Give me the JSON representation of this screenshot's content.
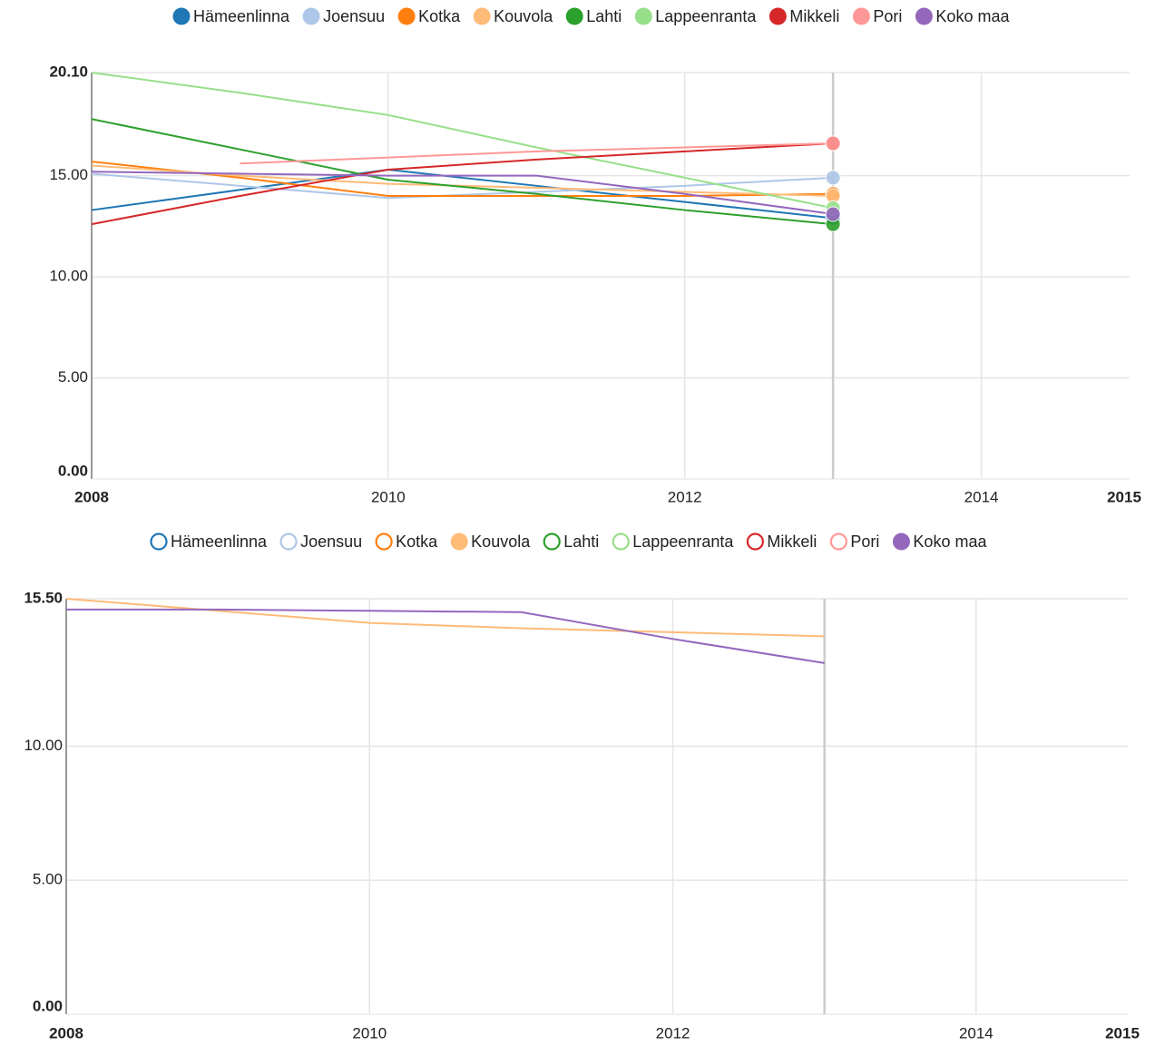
{
  "chart_data": [
    {
      "type": "line",
      "x": [
        2008,
        2009,
        2010,
        2011,
        2012,
        2013
      ],
      "series": [
        {
          "name": "Hämeenlinna",
          "color": "#1f77b4",
          "values": [
            13.3,
            14.3,
            15.3,
            14.5,
            13.7,
            12.9
          ]
        },
        {
          "name": "Joensuu",
          "color": "#aec7e8",
          "values": [
            15.1,
            14.5,
            13.9,
            14.2,
            14.5,
            14.9
          ]
        },
        {
          "name": "Kotka",
          "color": "#ff7f0e",
          "values": [
            15.7,
            14.9,
            14.0,
            14.0,
            14.0,
            14.1
          ]
        },
        {
          "name": "Kouvola",
          "color": "#ffbb78",
          "values": [
            15.5,
            15.0,
            14.6,
            14.4,
            14.2,
            14.0
          ]
        },
        {
          "name": "Lahti",
          "color": "#2ca02c",
          "values": [
            17.8,
            16.3,
            14.8,
            14.1,
            13.3,
            12.6
          ]
        },
        {
          "name": "Lappeenranta",
          "color": "#98df8a",
          "values": [
            20.1,
            19.1,
            18.0,
            16.4,
            14.9,
            13.4
          ]
        },
        {
          "name": "Mikkeli",
          "color": "#d62728",
          "values": [
            12.6,
            14.0,
            15.3,
            15.8,
            16.2,
            16.6
          ]
        },
        {
          "name": "Pori",
          "color": "#ff9896",
          "values": [
            null,
            15.6,
            15.9,
            16.2,
            16.4,
            16.6
          ]
        },
        {
          "name": "Koko maa",
          "color": "#9467bd",
          "values": [
            15.2,
            15.1,
            15.0,
            15.0,
            14.1,
            13.1
          ]
        }
      ],
      "xlim": [
        2008,
        2015
      ],
      "xticks": [
        2008,
        2010,
        2012,
        2014,
        2015
      ],
      "ylim": [
        0,
        20.1
      ],
      "yticks": [
        {
          "value": 0,
          "label": "0.00"
        },
        {
          "value": 5,
          "label": "5.00"
        },
        {
          "value": 10,
          "label": "10.00"
        },
        {
          "value": 15,
          "label": "15.00"
        },
        {
          "value": 20.1,
          "label": "20.10"
        }
      ],
      "grid": true,
      "end_markers": true,
      "highlight_x": 2013
    },
    {
      "type": "line",
      "x": [
        2008,
        2009,
        2010,
        2011,
        2012,
        2013
      ],
      "series": [
        {
          "name": "Hämeenlinna",
          "color": "#1f77b4",
          "visible": false
        },
        {
          "name": "Joensuu",
          "color": "#aec7e8",
          "visible": false
        },
        {
          "name": "Kotka",
          "color": "#ff7f0e",
          "visible": false
        },
        {
          "name": "Kouvola",
          "color": "#ffbb78",
          "visible": true,
          "values": [
            15.5,
            15.05,
            14.6,
            14.4,
            14.25,
            14.1
          ]
        },
        {
          "name": "Lahti",
          "color": "#2ca02c",
          "visible": false
        },
        {
          "name": "Lappeenranta",
          "color": "#98df8a",
          "visible": false
        },
        {
          "name": "Mikkeli",
          "color": "#d62728",
          "visible": false
        },
        {
          "name": "Pori",
          "color": "#ff9896",
          "visible": false
        },
        {
          "name": "Koko maa",
          "color": "#9467bd",
          "visible": true,
          "values": [
            15.1,
            15.1,
            15.05,
            15.0,
            14.0,
            13.1
          ]
        }
      ],
      "xlim": [
        2008,
        2015
      ],
      "xticks": [
        2008,
        2010,
        2012,
        2014,
        2015
      ],
      "ylim": [
        0,
        15.5
      ],
      "yticks": [
        {
          "value": 0,
          "label": "0.00"
        },
        {
          "value": 5,
          "label": "5.00"
        },
        {
          "value": 10,
          "label": "10.00"
        },
        {
          "value": 15.5,
          "label": "15.50"
        }
      ],
      "grid": true,
      "end_markers": false,
      "highlight_x": 2013
    }
  ]
}
